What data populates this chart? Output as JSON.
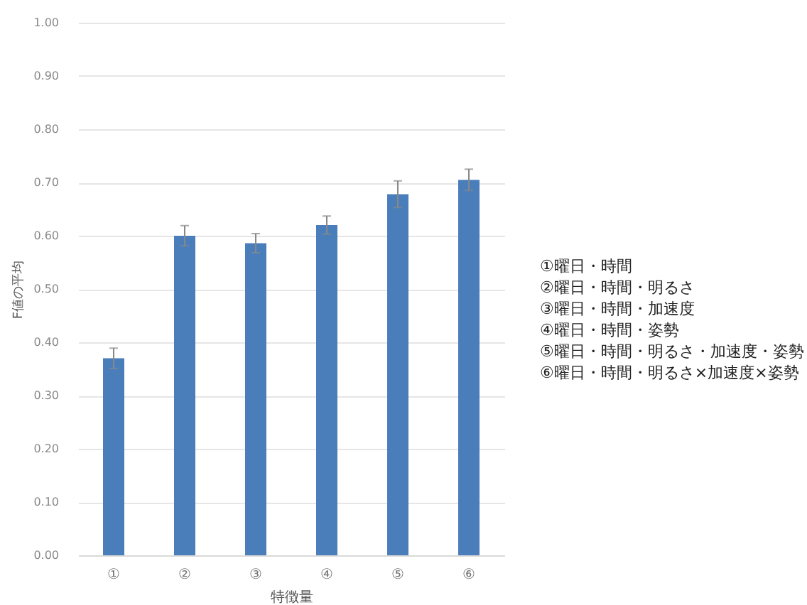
{
  "chart_data": {
    "type": "bar",
    "xlabel": "特徴量",
    "ylabel": "F値の平均",
    "categories": [
      "①",
      "②",
      "③",
      "④",
      "⑤",
      "⑥"
    ],
    "values": [
      0.37,
      0.6,
      0.586,
      0.62,
      0.678,
      0.705
    ],
    "errors": [
      0.019,
      0.019,
      0.018,
      0.017,
      0.025,
      0.02
    ],
    "color": "#4a7ebb",
    "ylim": [
      0,
      1
    ],
    "yticks": [
      {
        "value": 0,
        "label": "0.00"
      },
      {
        "value": 0.1,
        "label": "0.10"
      },
      {
        "value": 0.2,
        "label": "0.20"
      },
      {
        "value": 0.3,
        "label": "0.30"
      },
      {
        "value": 0.4,
        "label": "0.40"
      },
      {
        "value": 0.5,
        "label": "0.50"
      },
      {
        "value": 0.6,
        "label": "0.60"
      },
      {
        "value": 0.7,
        "label": "0.70"
      },
      {
        "value": 0.8,
        "label": "0.80"
      },
      {
        "value": 0.9,
        "label": "0.90"
      },
      {
        "value": 1,
        "label": "1.00"
      }
    ],
    "grid": "y",
    "annotations": [
      "①曜日・時間",
      "②曜日・時間・明るさ",
      "③曜日・時間・加速度",
      "④曜日・時間・姿勢",
      "⑤曜日・時間・明るさ・加速度・姿勢",
      "⑥曜日・時間・明るさ×加速度×姿勢"
    ]
  }
}
